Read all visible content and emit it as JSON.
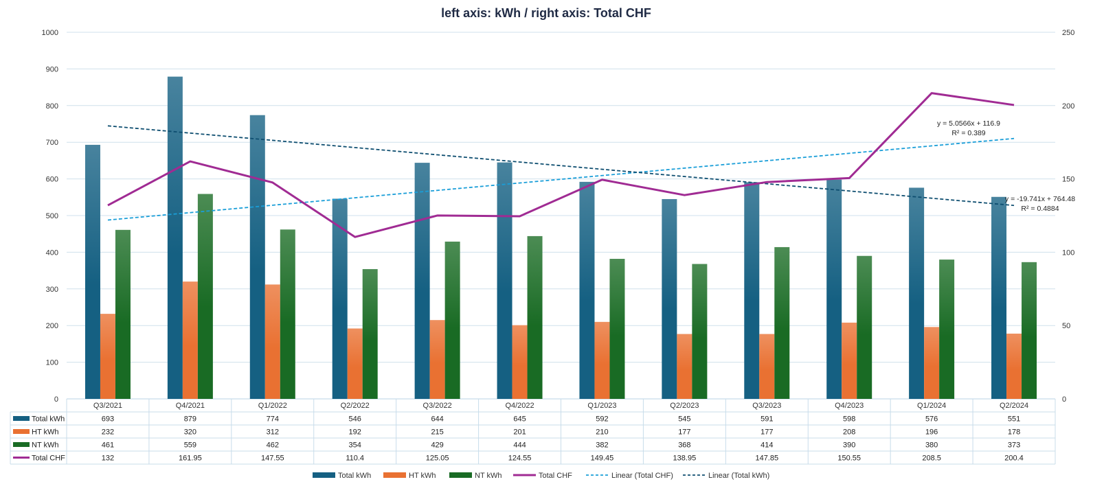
{
  "chart_data": {
    "type": "bar",
    "title": "left axis: kWh / right axis: Total CHF",
    "categories": [
      "Q3/2021",
      "Q4/2021",
      "Q1/2022",
      "Q2/2022",
      "Q3/2022",
      "Q4/2022",
      "Q1/2023",
      "Q2/2023",
      "Q3/2023",
      "Q4/2023",
      "Q1/2024",
      "Q2/2024"
    ],
    "series": [
      {
        "name": "Total kWh",
        "kind": "bar",
        "axis": "left",
        "color": "#156082",
        "values": [
          693,
          879,
          774,
          546,
          644,
          645,
          592,
          545,
          591,
          598,
          576,
          551
        ]
      },
      {
        "name": "HT kWh",
        "kind": "bar",
        "axis": "left",
        "color": "#e97132",
        "values": [
          232,
          320,
          312,
          192,
          215,
          201,
          210,
          177,
          177,
          208,
          196,
          178
        ]
      },
      {
        "name": "NT kWh",
        "kind": "bar",
        "axis": "left",
        "color": "#196b24",
        "values": [
          461,
          559,
          462,
          354,
          429,
          444,
          382,
          368,
          414,
          390,
          380,
          373
        ]
      },
      {
        "name": "Total CHF",
        "kind": "line",
        "axis": "right",
        "color": "#a02b93",
        "values": [
          132,
          161.95,
          147.55,
          110.4,
          125.05,
          124.55,
          149.45,
          138.95,
          147.85,
          150.55,
          208.5,
          200.4
        ]
      }
    ],
    "table_display": {
      "Total CHF": [
        "132",
        "161.95",
        "147.55",
        "110.4",
        "125.05",
        "124.55",
        "149.45",
        "138.95",
        "147.85",
        "150.55",
        "208.5",
        "200.4"
      ]
    },
    "trendlines": [
      {
        "name": "Linear (Total CHF)",
        "of": "Total CHF",
        "axis": "right",
        "slope": 5.0566,
        "intercept": 116.9,
        "equation": "y = 5.0566x + 116.9",
        "r2_label": "R² = 0.389",
        "color": "#1a9ed8"
      },
      {
        "name": "Linear (Total kWh)",
        "of": "Total kWh",
        "axis": "left",
        "slope": -19.741,
        "intercept": 764.48,
        "equation": "y = -19.741x + 764.48",
        "r2_label": "R² = 0.4884",
        "color": "#0e4e70"
      }
    ],
    "left_axis": {
      "min": 0,
      "max": 1000,
      "step": 100
    },
    "right_axis": {
      "min": 0,
      "max": 250,
      "step": 50
    },
    "grid": true,
    "data_table": true,
    "legend_position": "bottom"
  }
}
